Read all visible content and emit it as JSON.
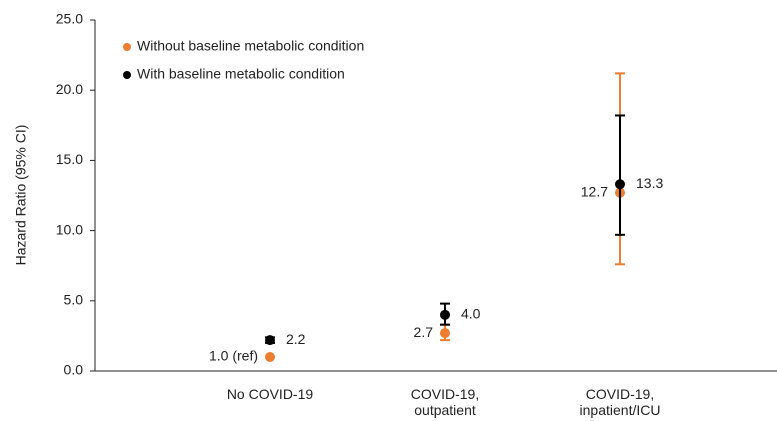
{
  "chart_data": {
    "type": "scatter",
    "y_label": "Hazard Ratio (95% CI)",
    "categories": [
      "No COVID-19",
      "COVID-19, outpatient",
      "COVID-19, inpatient/ICU"
    ],
    "series": [
      {
        "name": "Without baseline metabolic condition",
        "color": "#ed7d31",
        "values": [
          1.0,
          2.7,
          12.7
        ],
        "value_labels": [
          "1.0 (ref)",
          "2.7",
          "12.7"
        ],
        "lower": [
          null,
          2.2,
          7.6
        ],
        "upper": [
          null,
          3.3,
          21.2
        ]
      },
      {
        "name": "With baseline metabolic condition",
        "color": "#000000",
        "values": [
          2.2,
          4.0,
          13.3
        ],
        "value_labels": [
          "2.2",
          "4.0",
          "13.3"
        ],
        "lower": [
          2.0,
          3.3,
          9.7
        ],
        "upper": [
          2.4,
          4.8,
          18.2
        ]
      }
    ],
    "ylim": [
      0,
      25
    ],
    "yticks": [
      {
        "value": 0,
        "label": "0.0"
      },
      {
        "value": 5,
        "label": "5.0"
      },
      {
        "value": 10,
        "label": "10.0"
      },
      {
        "value": 15,
        "label": "15.0"
      },
      {
        "value": 20,
        "label": "20.0"
      },
      {
        "value": 25,
        "label": "25.0"
      }
    ]
  }
}
